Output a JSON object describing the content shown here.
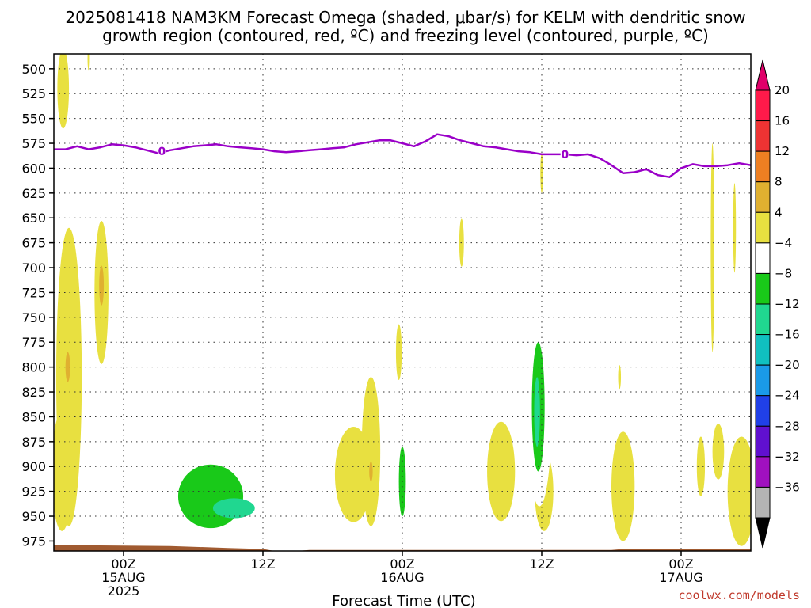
{
  "chart_data": {
    "type": "heatmap",
    "title_line1": "2025081418 NAM3KM Forecast Omega (shaded, μbar/s) for KELM with dendritic snow",
    "title_line2": "growth region (contoured, red, ºC) and freezing level (contoured, purple, ºC)",
    "xlabel": "Forecast Time (UTC)",
    "credit": "coolwx.com/models",
    "x_hours_range": [
      0,
      60
    ],
    "y_pressure_range": [
      485,
      985
    ],
    "y_ticks": [
      "500",
      "525",
      "550",
      "575",
      "600",
      "625",
      "650",
      "675",
      "700",
      "725",
      "750",
      "775",
      "800",
      "825",
      "850",
      "875",
      "900",
      "925",
      "950",
      "975"
    ],
    "x_ticks": [
      {
        "hour": 6,
        "labels": [
          "00Z",
          "15AUG",
          "2025"
        ]
      },
      {
        "hour": 18,
        "labels": [
          "12Z"
        ]
      },
      {
        "hour": 30,
        "labels": [
          "00Z",
          "16AUG"
        ]
      },
      {
        "hour": 42,
        "labels": [
          "12Z"
        ]
      },
      {
        "hour": 54,
        "labels": [
          "00Z",
          "17AUG"
        ]
      }
    ],
    "colorbar": {
      "levels": [
        "20",
        "16",
        "12",
        "8",
        "4",
        "−4",
        "−8",
        "−12",
        "−16",
        "−20",
        "−24",
        "−28",
        "−32",
        "−36"
      ],
      "colors": [
        "#ff1a4a",
        "#ee3333",
        "#ee7f22",
        "#e0b030",
        "#e8e040",
        "#ffffff",
        "#19c919",
        "#20d790",
        "#10c0c0",
        "#1a9ae8",
        "#2040e8",
        "#6010d0",
        "#a010c0",
        "#b4b4b4"
      ],
      "over_color": "#e0006a",
      "under_color": "#000000"
    },
    "freezing_level": {
      "label": "0",
      "color": "#9a00c8",
      "points": [
        [
          0,
          581
        ],
        [
          1,
          581
        ],
        [
          2,
          578
        ],
        [
          3,
          581
        ],
        [
          4,
          579
        ],
        [
          5,
          576
        ],
        [
          6,
          577
        ],
        [
          7,
          579
        ],
        [
          8,
          582
        ],
        [
          9,
          585
        ],
        [
          10,
          582
        ],
        [
          11,
          580
        ],
        [
          12,
          578
        ],
        [
          13,
          577
        ],
        [
          14,
          576
        ],
        [
          15,
          578
        ],
        [
          16,
          579
        ],
        [
          17,
          580
        ],
        [
          18,
          581
        ],
        [
          19,
          583
        ],
        [
          20,
          584
        ],
        [
          21,
          583
        ],
        [
          22,
          582
        ],
        [
          23,
          581
        ],
        [
          24,
          580
        ],
        [
          25,
          579
        ],
        [
          26,
          576
        ],
        [
          27,
          574
        ],
        [
          28,
          572
        ],
        [
          29,
          572
        ],
        [
          30,
          575
        ],
        [
          31,
          578
        ],
        [
          32,
          573
        ],
        [
          33,
          566
        ],
        [
          34,
          568
        ],
        [
          35,
          572
        ],
        [
          36,
          575
        ],
        [
          37,
          578
        ],
        [
          38,
          579
        ],
        [
          39,
          581
        ],
        [
          40,
          583
        ],
        [
          41,
          584
        ],
        [
          42,
          586
        ],
        [
          43,
          586
        ],
        [
          44,
          586
        ],
        [
          45,
          587
        ],
        [
          46,
          586
        ],
        [
          47,
          590
        ],
        [
          48,
          597
        ],
        [
          49,
          605
        ],
        [
          50,
          604
        ],
        [
          51,
          601
        ],
        [
          52,
          607
        ],
        [
          53,
          609
        ],
        [
          54,
          600
        ],
        [
          55,
          596
        ],
        [
          56,
          598
        ],
        [
          57,
          598
        ],
        [
          58,
          597
        ],
        [
          59,
          595
        ],
        [
          60,
          597
        ]
      ]
    },
    "terrain": {
      "color": "#a05a30",
      "points": [
        [
          0,
          979
        ],
        [
          10,
          980
        ],
        [
          15,
          982
        ],
        [
          18,
          983
        ],
        [
          19,
          985
        ],
        [
          21,
          985
        ],
        [
          22,
          984
        ],
        [
          30,
          984
        ],
        [
          40,
          984
        ],
        [
          48,
          984
        ],
        [
          49,
          983
        ],
        [
          60,
          983
        ]
      ]
    },
    "positive_omega_regions": [
      {
        "x": 0.8,
        "p": 520,
        "rx": 0.5,
        "rp": 40,
        "level": "4"
      },
      {
        "x": 3.0,
        "p": 490,
        "rx": 0.1,
        "rp": 12,
        "level": "4"
      },
      {
        "x": 1.3,
        "p": 810,
        "rx": 1.1,
        "rp": 150,
        "level": "4"
      },
      {
        "x": 1.2,
        "p": 800,
        "rx": 0.2,
        "rp": 15,
        "level": "8"
      },
      {
        "x": 0.7,
        "p": 905,
        "rx": 0.9,
        "rp": 60,
        "level": "4"
      },
      {
        "x": 4.1,
        "p": 725,
        "rx": 0.6,
        "rp": 72,
        "level": "4"
      },
      {
        "x": 4.1,
        "p": 718,
        "rx": 0.2,
        "rp": 20,
        "level": "8"
      },
      {
        "x": 25.8,
        "p": 908,
        "rx": 1.6,
        "rp": 48,
        "level": "4"
      },
      {
        "x": 27.3,
        "p": 885,
        "rx": 0.8,
        "rp": 75,
        "level": "4"
      },
      {
        "x": 27.3,
        "p": 905,
        "rx": 0.15,
        "rp": 10,
        "level": "8"
      },
      {
        "x": 29.7,
        "p": 785,
        "rx": 0.25,
        "rp": 28,
        "level": "4"
      },
      {
        "x": 35.1,
        "p": 675,
        "rx": 0.2,
        "rp": 24,
        "level": "4"
      },
      {
        "x": 38.5,
        "p": 905,
        "rx": 1.2,
        "rp": 50,
        "level": "4"
      },
      {
        "x": 42.2,
        "p": 925,
        "rx": 0.8,
        "rp": 40,
        "level": "4"
      },
      {
        "x": 42.0,
        "p": 930,
        "rx": 0.12,
        "rp": 8,
        "level": "8"
      },
      {
        "x": 42.0,
        "p": 605,
        "rx": 0.12,
        "rp": 20,
        "level": "4"
      },
      {
        "x": 48.7,
        "p": 810,
        "rx": 0.12,
        "rp": 12,
        "level": "4"
      },
      {
        "x": 49.0,
        "p": 920,
        "rx": 1.0,
        "rp": 55,
        "level": "4"
      },
      {
        "x": 55.7,
        "p": 900,
        "rx": 0.35,
        "rp": 30,
        "level": "4"
      },
      {
        "x": 57.2,
        "p": 885,
        "rx": 0.5,
        "rp": 28,
        "level": "4"
      },
      {
        "x": 56.7,
        "p": 680,
        "rx": 0.15,
        "rp": 105,
        "level": "4"
      },
      {
        "x": 58.6,
        "p": 660,
        "rx": 0.12,
        "rp": 45,
        "level": "4"
      },
      {
        "x": 59.2,
        "p": 925,
        "rx": 1.2,
        "rp": 55,
        "level": "4"
      }
    ],
    "negative_omega_regions": [
      {
        "x": 4.0,
        "p": 895,
        "rx": 0.45,
        "rp": 33,
        "level": "−4"
      },
      {
        "x": 12.5,
        "p": 915,
        "rx": 5.0,
        "rp": 52,
        "level": "−4"
      },
      {
        "x": 13.5,
        "p": 930,
        "rx": 2.8,
        "rp": 32,
        "level": "−8"
      },
      {
        "x": 15.5,
        "p": 942,
        "rx": 1.8,
        "rp": 10,
        "level": "−12"
      },
      {
        "x": 30.8,
        "p": 920,
        "rx": 1.8,
        "rp": 60,
        "level": "−4"
      },
      {
        "x": 30.0,
        "p": 915,
        "rx": 0.3,
        "rp": 35,
        "level": "−8"
      },
      {
        "x": 35.5,
        "p": 905,
        "rx": 0.9,
        "rp": 50,
        "level": "−4"
      },
      {
        "x": 41.8,
        "p": 835,
        "rx": 1.1,
        "rp": 105,
        "level": "−4"
      },
      {
        "x": 41.7,
        "p": 840,
        "rx": 0.55,
        "rp": 65,
        "level": "−8"
      },
      {
        "x": 41.6,
        "p": 845,
        "rx": 0.25,
        "rp": 35,
        "level": "−12"
      },
      {
        "x": 45.0,
        "p": 730,
        "rx": 0.12,
        "rp": 38,
        "level": "−4"
      },
      {
        "x": 52.6,
        "p": 665,
        "rx": 0.7,
        "rp": 170,
        "level": "−4"
      },
      {
        "x": 53.9,
        "p": 895,
        "rx": 0.3,
        "rp": 33,
        "level": "−4"
      },
      {
        "x": 59.2,
        "p": 540,
        "rx": 0.25,
        "rp": 55,
        "level": "−4"
      }
    ]
  }
}
